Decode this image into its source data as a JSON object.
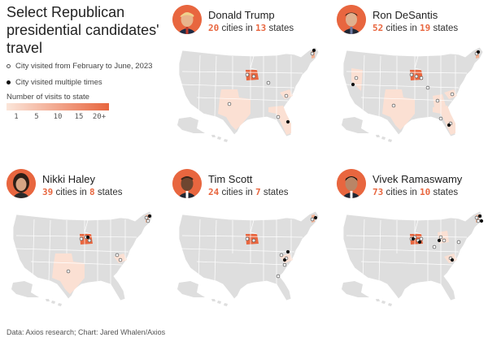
{
  "title": "Select Republican presidential candidates' travel",
  "legend": {
    "visited": "City visited from February to June, 2023",
    "multiple": "City visited multiple times",
    "scale_title": "Number of visits to state",
    "ticks": [
      "1",
      "5",
      "10",
      "15",
      "20+"
    ]
  },
  "colors": {
    "accent": "#e8663f",
    "land": "#dedede",
    "state_light": "#fbe0d3",
    "state_mid": "#f3b294",
    "state_dark": "#e8663f"
  },
  "candidates": [
    {
      "name": "Donald Trump",
      "cities": "20",
      "cities_word": "cities in",
      "states": "13",
      "states_word": "states",
      "highlight": [
        "IA",
        "NH",
        "TX",
        "FL",
        "SC"
      ]
    },
    {
      "name": "Ron DeSantis",
      "cities": "52",
      "cities_word": "cities in",
      "states": "19",
      "states_word": "states",
      "highlight": [
        "IA",
        "NH",
        "NV",
        "TX",
        "FL",
        "SC",
        "GA"
      ]
    },
    {
      "name": "Nikki Haley",
      "cities": "39",
      "cities_word": "cities in",
      "states": "8",
      "states_word": "states",
      "highlight": [
        "IA",
        "NH",
        "TX",
        "SC"
      ]
    },
    {
      "name": "Tim Scott",
      "cities": "24",
      "cities_word": "cities in",
      "states": "7",
      "states_word": "states",
      "highlight": [
        "IA",
        "NH",
        "SC"
      ]
    },
    {
      "name": "Vivek Ramaswamy",
      "cities": "73",
      "cities_word": "cities in",
      "states": "10",
      "states_word": "states",
      "highlight": [
        "IA",
        "NH",
        "OH",
        "SC"
      ]
    }
  ],
  "source": "Data: Axios research; Chart: Jared Whalen/Axios"
}
